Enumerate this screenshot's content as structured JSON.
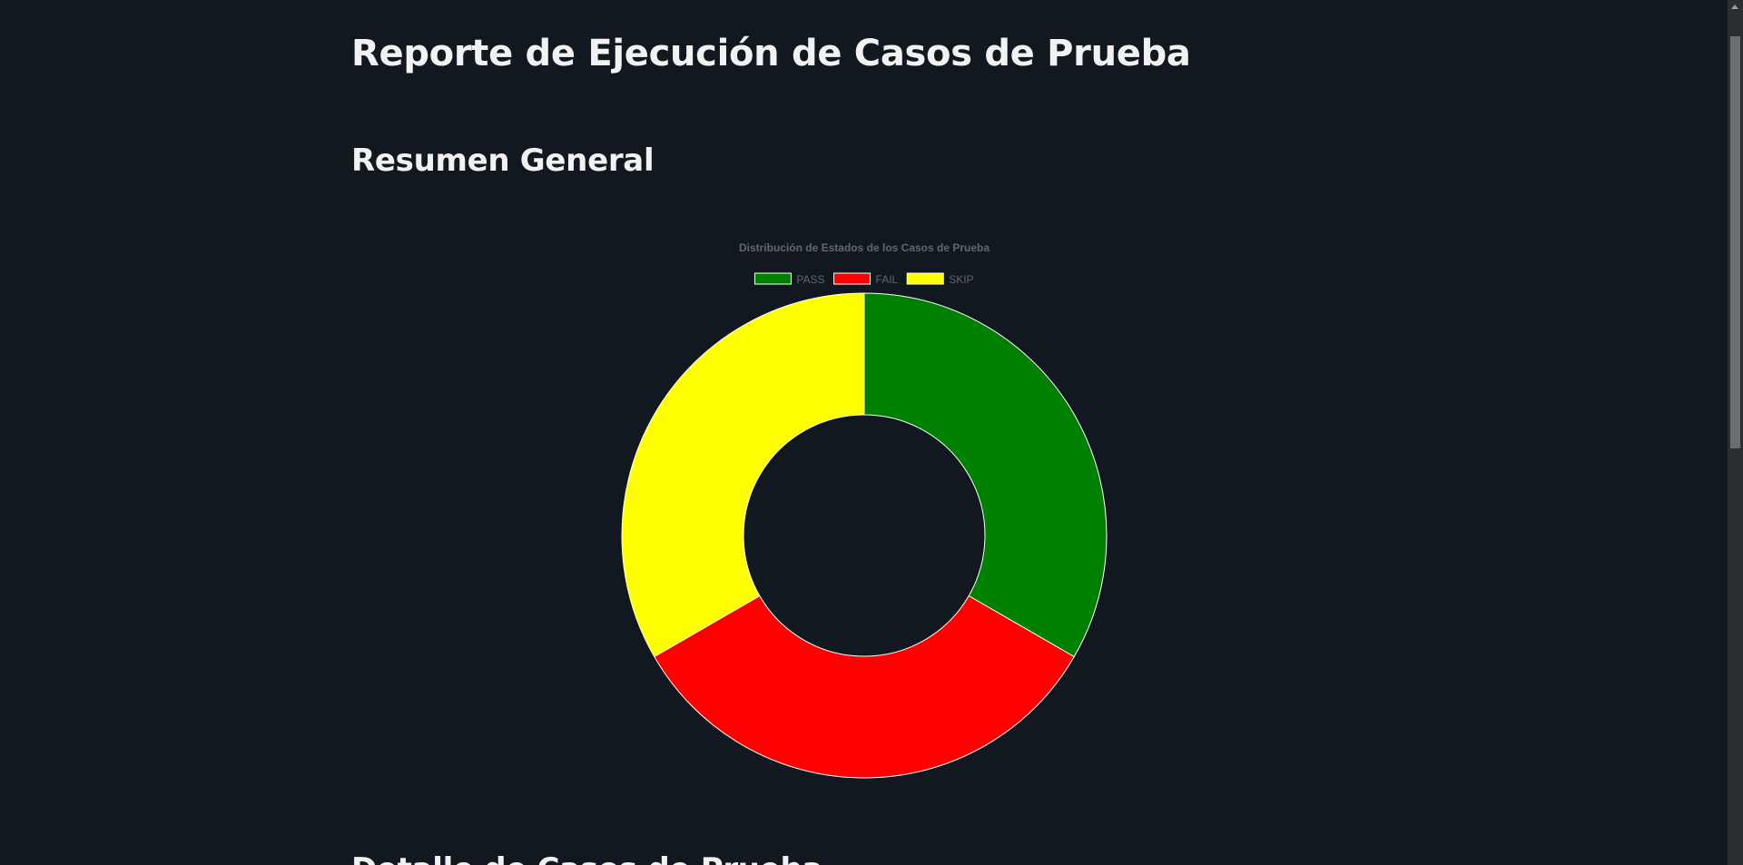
{
  "page": {
    "title": "Reporte de Ejecución de Casos de Prueba",
    "summary_heading": "Resumen General",
    "details_heading": "Detalle de Casos de Prueba"
  },
  "colors": {
    "background": "#111820",
    "pass": "#008000",
    "fail": "#ff0000",
    "skip": "#ffff00"
  },
  "chart_data": {
    "type": "pie",
    "variant": "doughnut",
    "title": "Distribución de Estados de los Casos de Prueba",
    "legend_position": "top",
    "categories": [
      "PASS",
      "FAIL",
      "SKIP"
    ],
    "values": [
      1,
      1,
      1
    ],
    "colors": [
      "#008000",
      "#ff0000",
      "#ffff00"
    ]
  }
}
